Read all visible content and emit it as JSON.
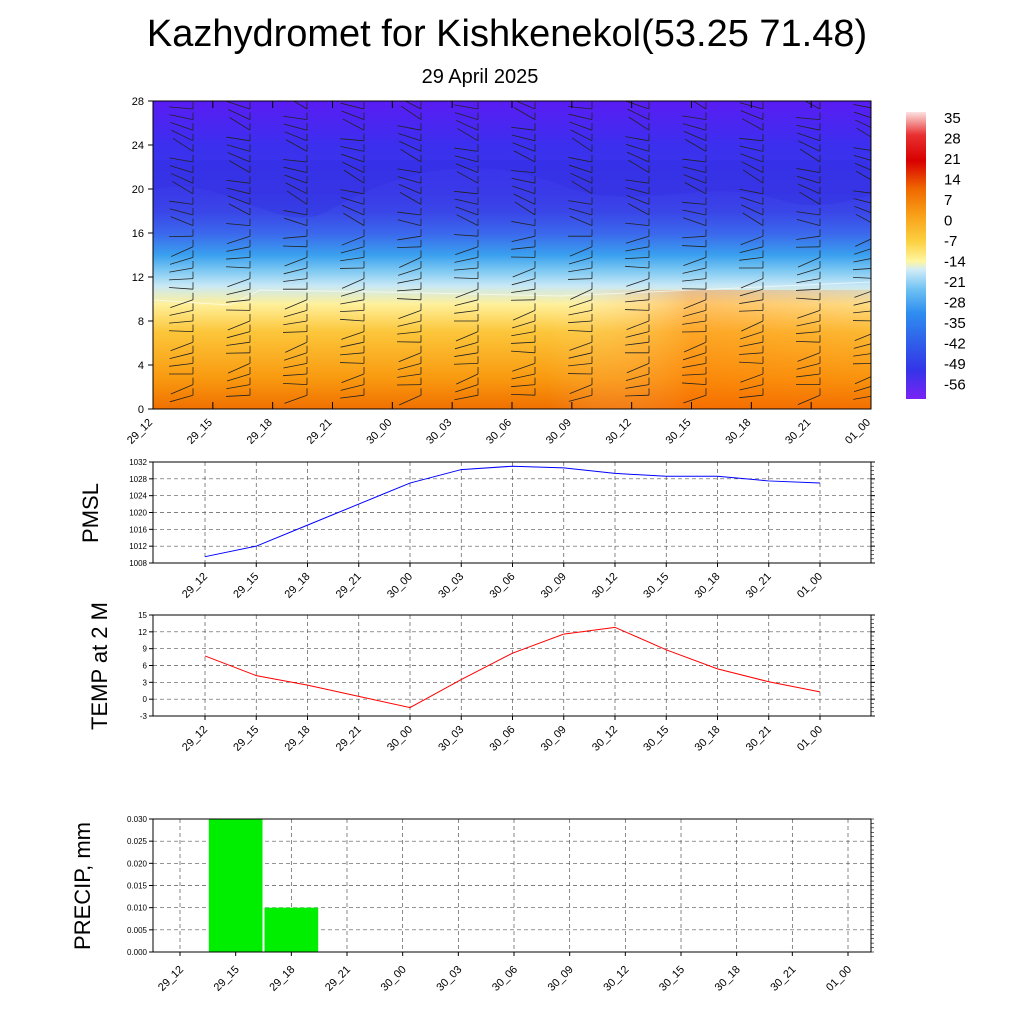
{
  "title": "Kazhydromet for Kishkenekol(53.25 71.48)",
  "subtitle": "29 April 2025",
  "time_labels": [
    "29_12",
    "29_15",
    "29_18",
    "29_21",
    "30_00",
    "30_03",
    "30_06",
    "30_09",
    "30_12",
    "30_15",
    "30_18",
    "30_21",
    "01_00"
  ],
  "chart_data": [
    {
      "type": "heatmap",
      "title": "",
      "xlabel": "",
      "ylabel": "",
      "ylim": [
        0,
        28
      ],
      "y_ticks": [
        0,
        4,
        8,
        12,
        16,
        20,
        24,
        28
      ],
      "colorbar": {
        "labels": [
          "35",
          "28",
          "21",
          "14",
          "7",
          "0",
          "-7",
          "-14",
          "-21",
          "-28",
          "-35",
          "-42",
          "-49",
          "-56"
        ],
        "range": [
          -63,
          42
        ]
      },
      "wind_barbs": true
    },
    {
      "type": "line",
      "title": "",
      "ylabel": "PMSL",
      "ylim": [
        1008,
        1032
      ],
      "y_ticks": [
        1008,
        1012,
        1016,
        1020,
        1024,
        1028,
        1032
      ],
      "color": "#0000ff",
      "values": [
        1009.5,
        1012,
        1017,
        1022,
        1027,
        1030.2,
        1031,
        1030.6,
        1029.3,
        1028.6,
        1028.6,
        1027.5,
        1027
      ]
    },
    {
      "type": "line",
      "title": "",
      "ylabel": "TEMP at 2 M",
      "ylim": [
        -3,
        15
      ],
      "y_ticks": [
        -3,
        0,
        3,
        6,
        9,
        12,
        15
      ],
      "color": "#ff0000",
      "values": [
        7.7,
        4.2,
        2.5,
        0.5,
        -1.5,
        3.5,
        8.2,
        11.6,
        12.8,
        8.8,
        5.4,
        3.1,
        1.3
      ]
    },
    {
      "type": "bar",
      "title": "",
      "ylabel": "PRECIP, mm",
      "ylim": [
        0,
        0.03
      ],
      "y_ticks": [
        "0.000",
        "0.005",
        "0.010",
        "0.015",
        "0.020",
        "0.025",
        "0.030"
      ],
      "color": "#00ee00",
      "values": [
        0,
        0.03,
        0.01,
        0,
        0,
        0,
        0,
        0,
        0,
        0,
        0,
        0,
        0
      ]
    }
  ]
}
